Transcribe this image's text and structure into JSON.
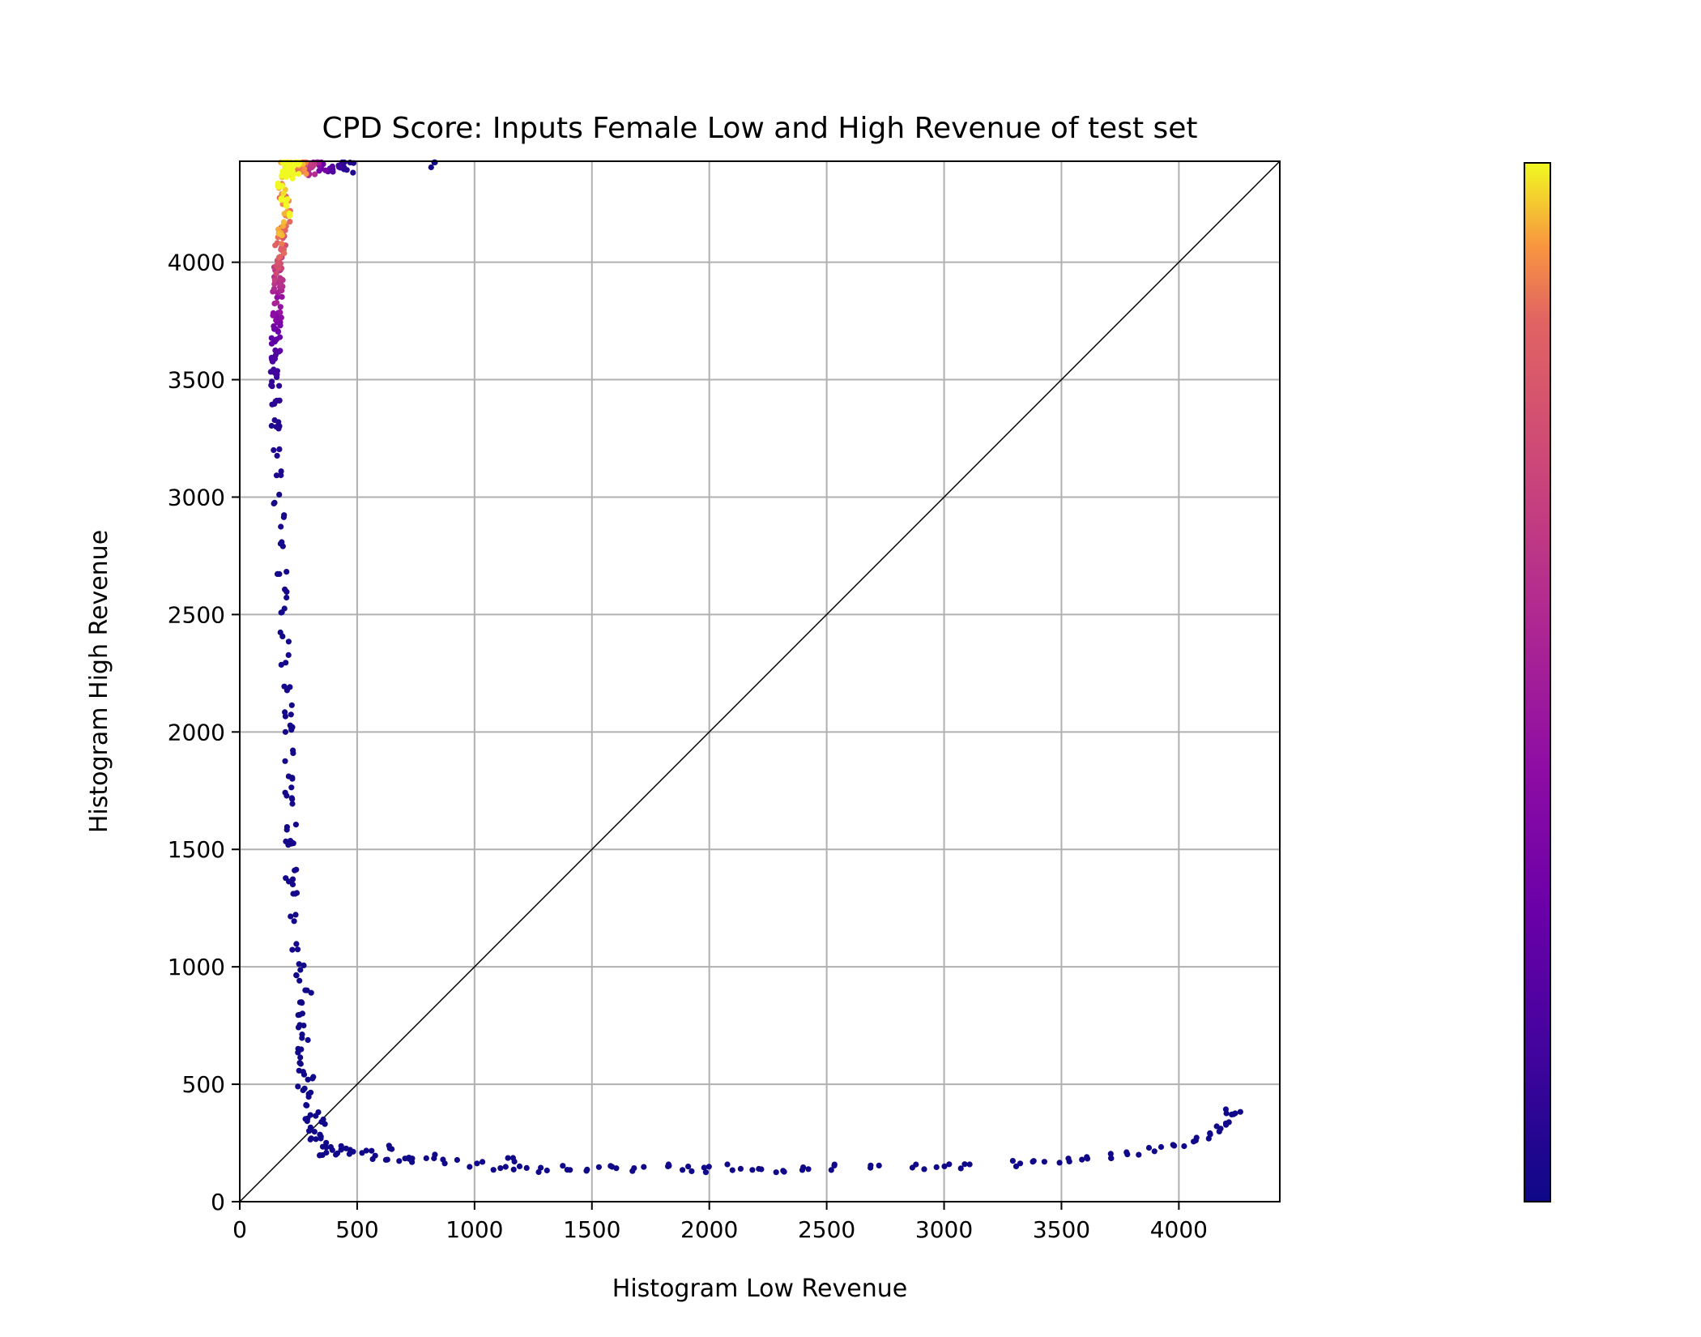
{
  "chart_data": {
    "type": "scatter",
    "title": "CPD Score: Inputs Female Low and High Revenue of test set",
    "xlabel": "Histogram Low Revenue",
    "ylabel": "Histogram High Revenue",
    "xlim": [
      0,
      4430
    ],
    "ylim": [
      0,
      4430
    ],
    "xticks": [
      "0",
      "500",
      "1000",
      "1500",
      "2000",
      "2500",
      "3000",
      "3500",
      "4000"
    ],
    "yticks": [
      "0",
      "500",
      "1000",
      "1500",
      "2000",
      "2500",
      "3000",
      "3500",
      "4000"
    ],
    "grid": true,
    "reference_line": "y = x",
    "colormap": "plasma",
    "colorbar": {
      "position": "right",
      "ticks": []
    },
    "colors": {
      "low_density": "#0d0887",
      "mid_density": "#cc4778",
      "high_density": "#f0f921",
      "grid": "#b0b0b0",
      "reference_line": "#000000"
    },
    "series": [
      {
        "points_note_scale": "density 0-1",
        "points": [
          [
            195,
            4420,
            1.0
          ],
          [
            200,
            4400,
            1.0
          ],
          [
            210,
            4380,
            0.98
          ],
          [
            220,
            4410,
            0.97
          ],
          [
            235,
            4395,
            0.95
          ],
          [
            250,
            4420,
            0.9
          ],
          [
            265,
            4405,
            0.85
          ],
          [
            280,
            4415,
            0.75
          ],
          [
            300,
            4400,
            0.6
          ],
          [
            320,
            4420,
            0.45
          ],
          [
            350,
            4405,
            0.3
          ],
          [
            380,
            4415,
            0.2
          ],
          [
            410,
            4400,
            0.12
          ],
          [
            440,
            4420,
            0.08
          ],
          [
            470,
            4405,
            0.05
          ],
          [
            800,
            4425,
            0.02
          ],
          [
            180,
            4350,
            0.99
          ],
          [
            185,
            4300,
            0.98
          ],
          [
            190,
            4250,
            0.96
          ],
          [
            200,
            4200,
            0.93
          ],
          [
            180,
            4150,
            0.9
          ],
          [
            175,
            4100,
            0.85
          ],
          [
            170,
            4050,
            0.8
          ],
          [
            168,
            4000,
            0.74
          ],
          [
            165,
            3950,
            0.66
          ],
          [
            163,
            3900,
            0.58
          ],
          [
            160,
            3850,
            0.5
          ],
          [
            158,
            3800,
            0.42
          ],
          [
            158,
            3750,
            0.35
          ],
          [
            155,
            3700,
            0.28
          ],
          [
            155,
            3650,
            0.22
          ],
          [
            155,
            3600,
            0.17
          ],
          [
            152,
            3550,
            0.13
          ],
          [
            150,
            3500,
            0.1
          ],
          [
            152,
            3400,
            0.08
          ],
          [
            155,
            3300,
            0.06
          ],
          [
            158,
            3200,
            0.05
          ],
          [
            162,
            3100,
            0.04
          ],
          [
            165,
            3000,
            0.03
          ],
          [
            170,
            2900,
            0.03
          ],
          [
            175,
            2800,
            0.02
          ],
          [
            180,
            2700,
            0.02
          ],
          [
            185,
            2600,
            0.02
          ],
          [
            188,
            2500,
            0.02
          ],
          [
            192,
            2400,
            0.02
          ],
          [
            195,
            2300,
            0.02
          ],
          [
            200,
            2200,
            0.02
          ],
          [
            205,
            2100,
            0.02
          ],
          [
            200,
            2050,
            0.02
          ],
          [
            210,
            2000,
            0.02
          ],
          [
            210,
            1900,
            0.02
          ],
          [
            215,
            1800,
            0.02
          ],
          [
            205,
            1750,
            0.02
          ],
          [
            215,
            1700,
            0.02
          ],
          [
            220,
            1600,
            0.02
          ],
          [
            210,
            1550,
            0.02
          ],
          [
            225,
            1500,
            0.02
          ],
          [
            225,
            1400,
            0.02
          ],
          [
            215,
            1350,
            0.02
          ],
          [
            235,
            1300,
            0.02
          ],
          [
            230,
            1200,
            0.02
          ],
          [
            240,
            1100,
            0.02
          ],
          [
            270,
            1000,
            0.01
          ],
          [
            240,
            950,
            0.01
          ],
          [
            290,
            900,
            0.01
          ],
          [
            250,
            850,
            0.01
          ],
          [
            255,
            800,
            0.01
          ],
          [
            265,
            750,
            0.01
          ],
          [
            280,
            700,
            0.01
          ],
          [
            245,
            650,
            0.01
          ],
          [
            260,
            600,
            0.01
          ],
          [
            255,
            550,
            0.01
          ],
          [
            300,
            520,
            0.01
          ],
          [
            265,
            480,
            0.01
          ],
          [
            290,
            450,
            0.01
          ],
          [
            275,
            400,
            0.01
          ],
          [
            320,
            380,
            0.01
          ],
          [
            285,
            350,
            0.01
          ],
          [
            350,
            340,
            0.01
          ],
          [
            300,
            310,
            0.01
          ],
          [
            330,
            280,
            0.01
          ],
          [
            310,
            260,
            0.01
          ],
          [
            350,
            240,
            0.01
          ],
          [
            380,
            220,
            0.01
          ],
          [
            360,
            200,
            0.01
          ],
          [
            420,
            215,
            0.01
          ],
          [
            450,
            230,
            0.01
          ],
          [
            500,
            200,
            0.01
          ],
          [
            550,
            210,
            0.01
          ],
          [
            600,
            190,
            0.01
          ],
          [
            650,
            230,
            0.01
          ],
          [
            700,
            180,
            0.01
          ],
          [
            750,
            175,
            0.01
          ],
          [
            800,
            190,
            0.01
          ],
          [
            900,
            165,
            0.01
          ],
          [
            1000,
            160,
            0.01
          ],
          [
            1100,
            150,
            0.01
          ],
          [
            1150,
            180,
            0.01
          ],
          [
            1200,
            145,
            0.01
          ],
          [
            1300,
            140,
            0.01
          ],
          [
            1400,
            145,
            0.01
          ],
          [
            1500,
            140,
            0.01
          ],
          [
            1600,
            155,
            0.01
          ],
          [
            1700,
            140,
            0.01
          ],
          [
            1800,
            145,
            0.01
          ],
          [
            1900,
            140,
            0.01
          ],
          [
            2000,
            138,
            0.01
          ],
          [
            2100,
            145,
            0.01
          ],
          [
            2200,
            140,
            0.01
          ],
          [
            2300,
            140,
            0.01
          ],
          [
            2400,
            145,
            0.01
          ],
          [
            2500,
            148,
            0.01
          ],
          [
            2700,
            150,
            0.01
          ],
          [
            2900,
            145,
            0.01
          ],
          [
            3000,
            150,
            0.01
          ],
          [
            3100,
            150,
            0.01
          ],
          [
            3300,
            160,
            0.01
          ],
          [
            3400,
            170,
            0.01
          ],
          [
            3500,
            175,
            0.01
          ],
          [
            3600,
            180,
            0.01
          ],
          [
            3700,
            195,
            0.01
          ],
          [
            3800,
            200,
            0.01
          ],
          [
            3900,
            220,
            0.01
          ],
          [
            4000,
            240,
            0.01
          ],
          [
            4050,
            260,
            0.01
          ],
          [
            4100,
            280,
            0.01
          ],
          [
            4150,
            310,
            0.01
          ],
          [
            4200,
            340,
            0.01
          ],
          [
            4230,
            390,
            0.01
          ],
          [
            4260,
            370,
            0.01
          ]
        ]
      }
    ]
  }
}
